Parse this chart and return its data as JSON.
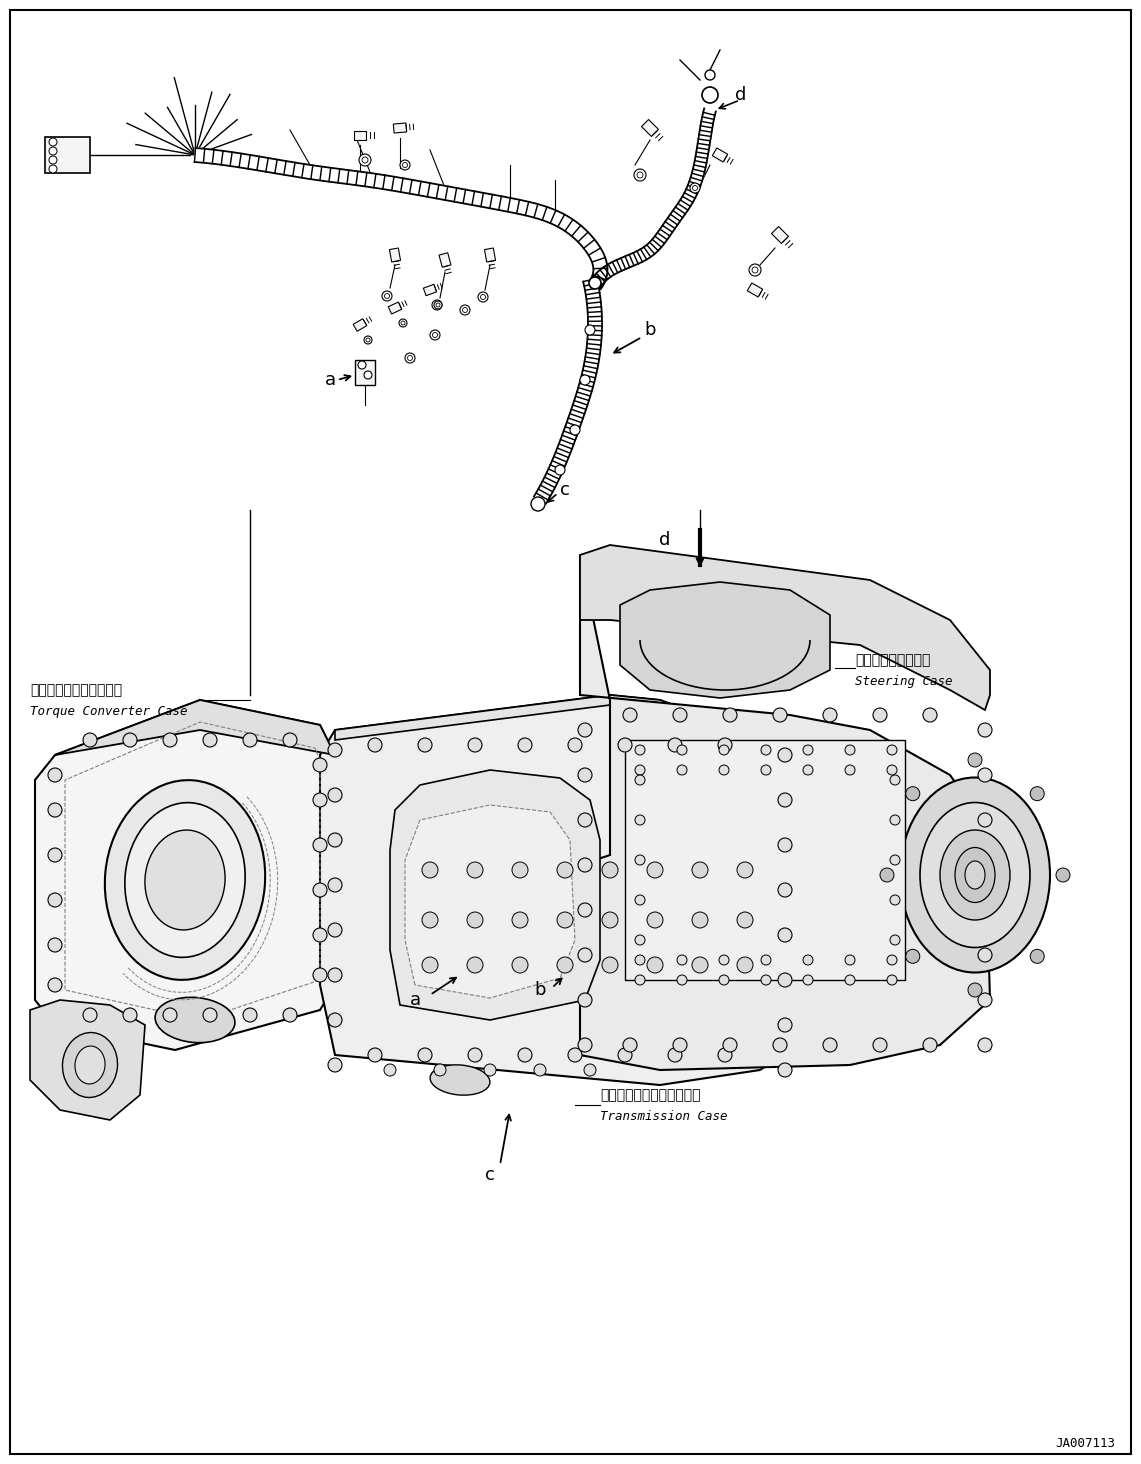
{
  "background_color": "#ffffff",
  "fig_width": 11.41,
  "fig_height": 14.64,
  "dpi": 100,
  "part_code": "JA007113",
  "label_steering_ja": "ステアリングケース",
  "label_steering_en": "Steering Case",
  "label_torque_ja": "トルクコンバータケース",
  "label_torque_en": "Torque Converter Case",
  "label_trans_ja": "トランスミッションケース",
  "label_trans_en": "Transmission Case",
  "line_color": "#000000",
  "fill_light": "#f5f5f5",
  "fill_mid": "#e0e0e0",
  "fill_dark": "#c8c8c8"
}
